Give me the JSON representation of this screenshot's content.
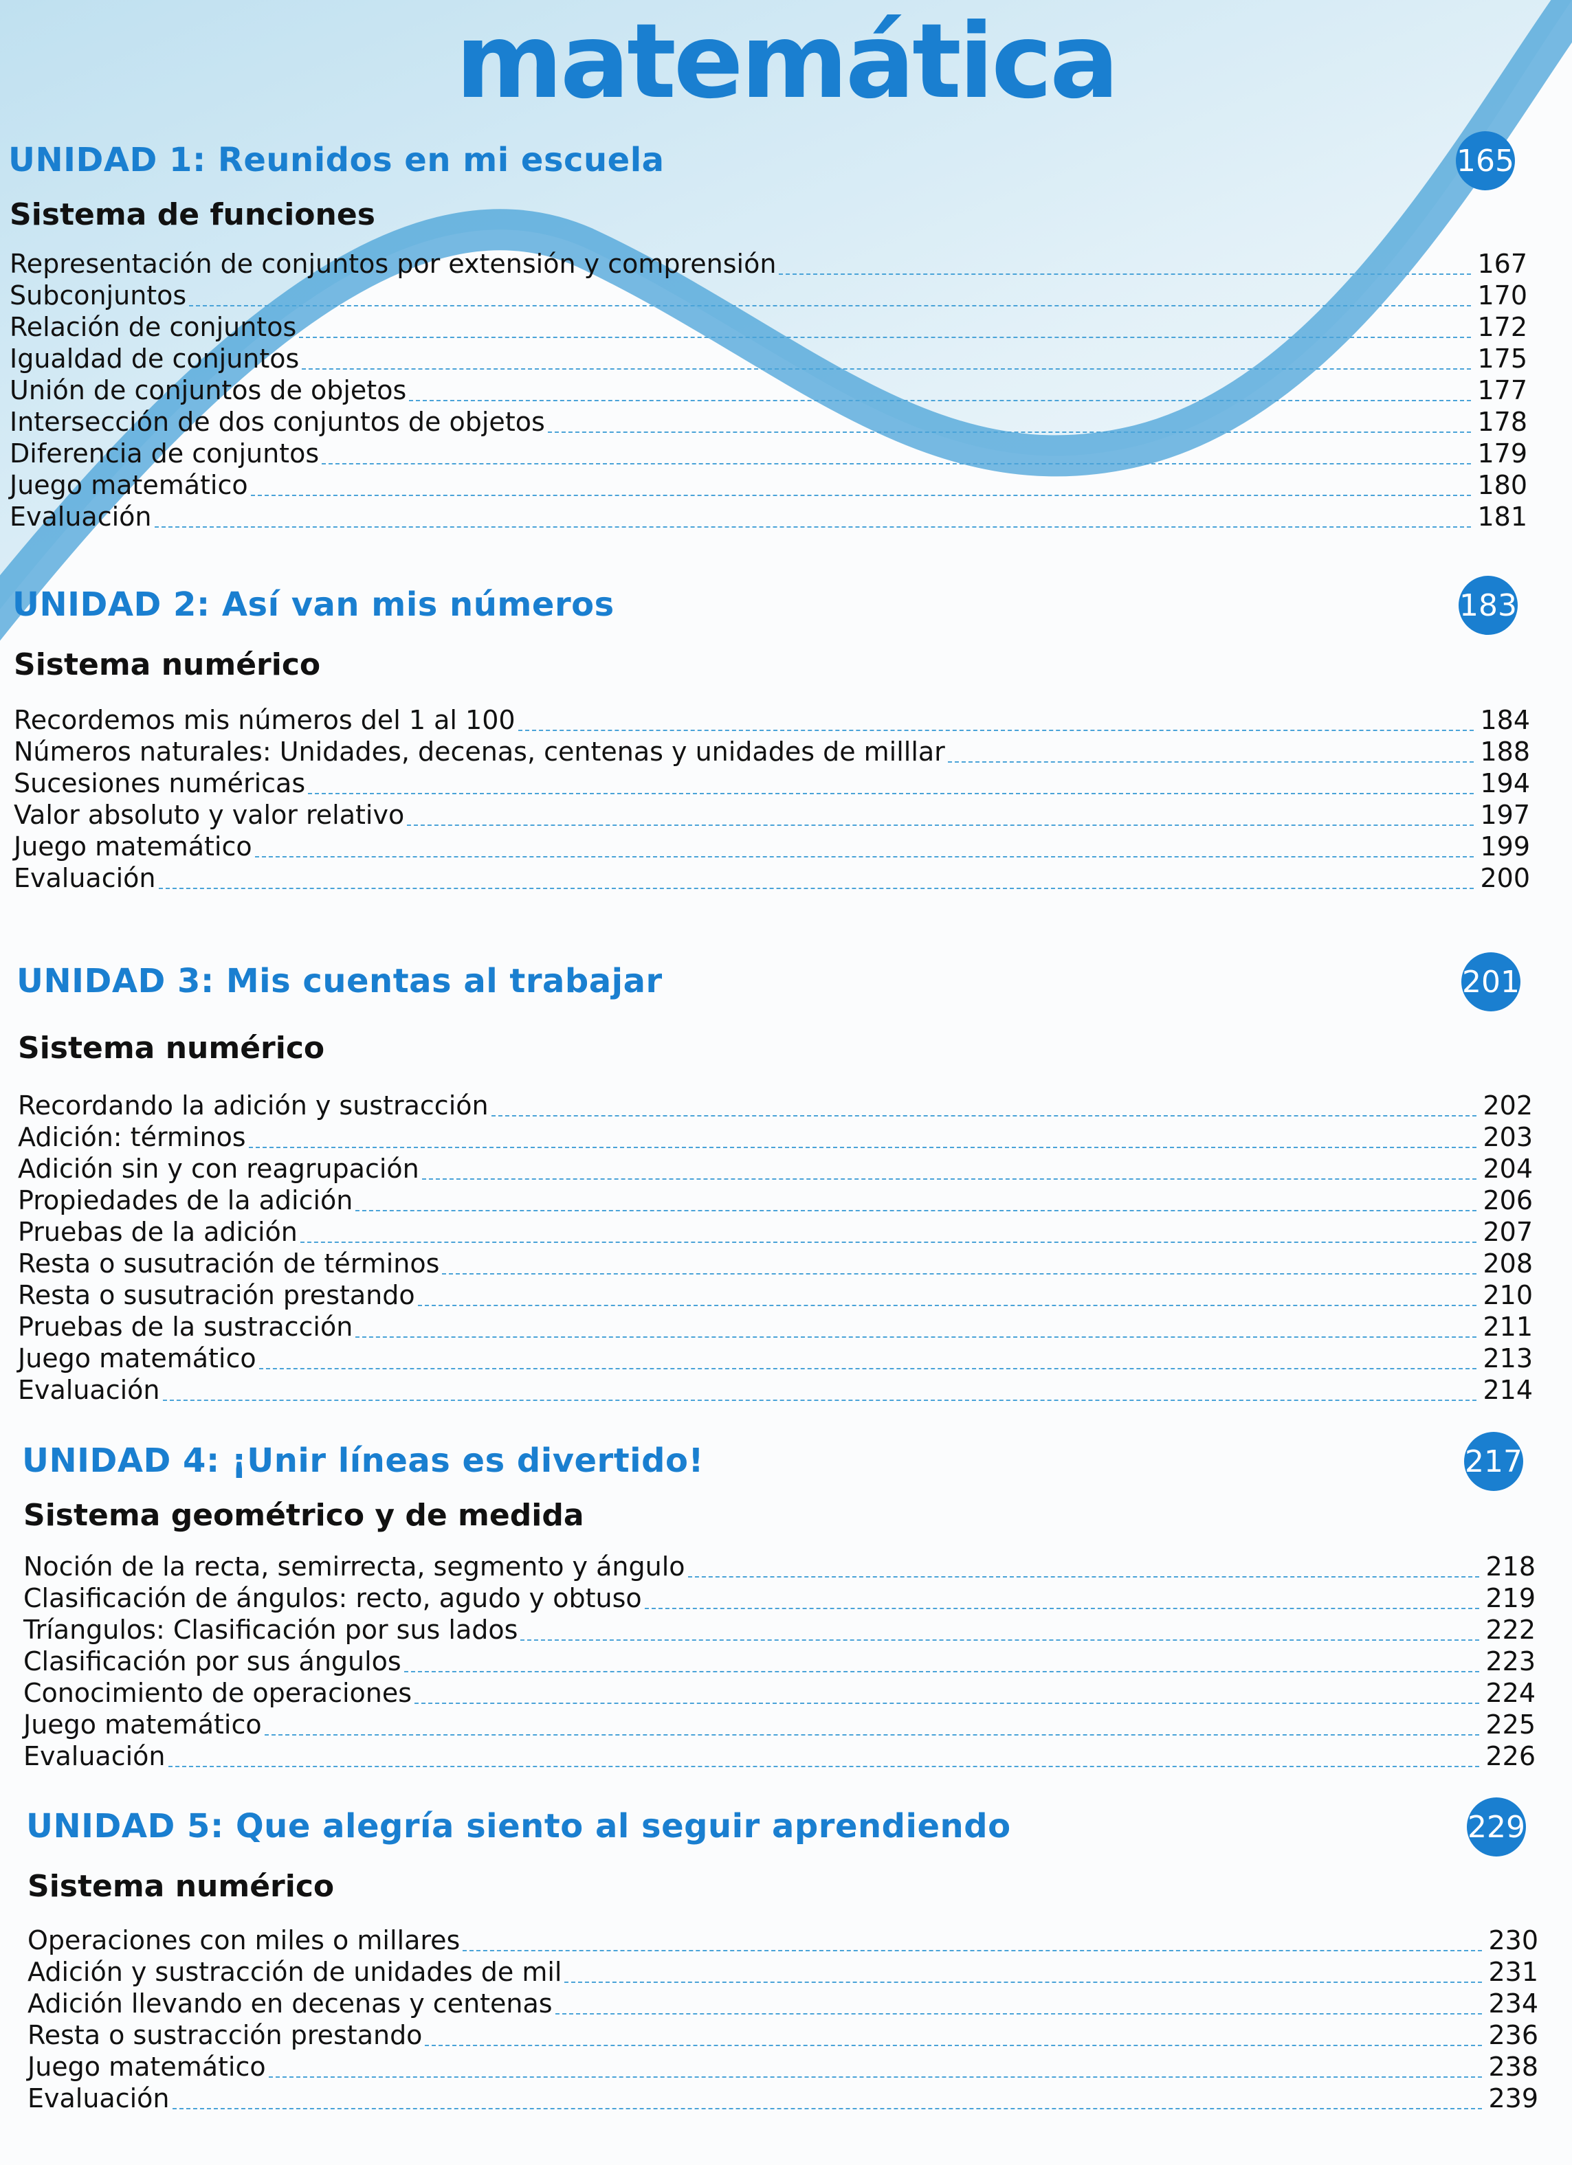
{
  "title": "matemática",
  "colors": {
    "accent": "#1a7fd0",
    "wave": "#4aa3d8",
    "text": "#111111"
  },
  "units": [
    {
      "heading": "UNIDAD 1:  Reunidos en mi escuela",
      "badge": "165",
      "subtitle": "Sistema de funciones",
      "items": [
        {
          "label": "Representación de conjuntos por extensión y comprensión",
          "page": "167"
        },
        {
          "label": "Subconjuntos",
          "page": "170"
        },
        {
          "label": "Relación de conjuntos",
          "page": "172"
        },
        {
          "label": "Igualdad de conjuntos",
          "page": "175"
        },
        {
          "label": "Unión de conjuntos de objetos",
          "page": "177"
        },
        {
          "label": "Intersección de dos conjuntos de objetos",
          "page": "178"
        },
        {
          "label": "Diferencia de conjuntos",
          "page": "179"
        },
        {
          "label": "Juego matemático",
          "page": "180"
        },
        {
          "label": "Evaluación",
          "page": "181"
        }
      ]
    },
    {
      "heading": "UNIDAD 2:  Así van mis números",
      "badge": "183",
      "subtitle": "Sistema numérico",
      "items": [
        {
          "label": "Recordemos mis números del 1 al 100",
          "page": "184"
        },
        {
          "label": "Números naturales: Unidades, decenas, centenas y unidades de milllar",
          "page": "188"
        },
        {
          "label": "Sucesiones numéricas",
          "page": "194"
        },
        {
          "label": "Valor absoluto y valor relativo",
          "page": "197"
        },
        {
          "label": "Juego matemático",
          "page": "199"
        },
        {
          "label": "Evaluación",
          "page": "200"
        }
      ]
    },
    {
      "heading": "UNIDAD 3: Mis cuentas al trabajar",
      "badge": "201",
      "subtitle": "Sistema numérico",
      "items": [
        {
          "label": "Recordando la adición y sustracción",
          "page": "202"
        },
        {
          "label": "Adición: términos",
          "page": "203"
        },
        {
          "label": "Adición sin y con reagrupación",
          "page": "204"
        },
        {
          "label": "Propiedades de la adición",
          "page": "206"
        },
        {
          "label": "Pruebas de la adición",
          "page": "207"
        },
        {
          "label": "Resta o susutración de términos",
          "page": "208"
        },
        {
          "label": "Resta o susutración prestando",
          "page": "210"
        },
        {
          "label": "Pruebas de la sustracción",
          "page": "211"
        },
        {
          "label": "Juego matemático",
          "page": "213"
        },
        {
          "label": "Evaluación",
          "page": "214"
        }
      ]
    },
    {
      "heading": "UNIDAD 4: ¡Unir líneas es divertido!",
      "badge": "217",
      "subtitle": "Sistema geométrico y de medida",
      "items": [
        {
          "label": "Noción de la recta, semirrecta, segmento y ángulo",
          "page": "218"
        },
        {
          "label": "Clasificación de ángulos: recto, agudo y obtuso",
          "page": "219"
        },
        {
          "label": "Tríangulos: Clasificación por sus lados",
          "page": "222"
        },
        {
          "label": "Clasificación por sus ángulos",
          "page": "223"
        },
        {
          "label": "Conocimiento de operaciones",
          "page": "224"
        },
        {
          "label": "Juego matemático",
          "page": "225"
        },
        {
          "label": "Evaluación",
          "page": "226"
        }
      ]
    },
    {
      "heading": "UNIDAD 5:  Que alegría siento al seguir aprendiendo",
      "badge": "229",
      "subtitle": "Sistema numérico",
      "items": [
        {
          "label": "Operaciones con miles o millares",
          "page": "230"
        },
        {
          "label": "Adición y sustracción de unidades de mil",
          "page": "231"
        },
        {
          "label": "Adición llevando en decenas y centenas",
          "page": "234"
        },
        {
          "label": "Resta o sustracción prestando",
          "page": "236"
        },
        {
          "label": "Juego matemático",
          "page": "238"
        },
        {
          "label": "Evaluación",
          "page": "239"
        }
      ]
    }
  ]
}
